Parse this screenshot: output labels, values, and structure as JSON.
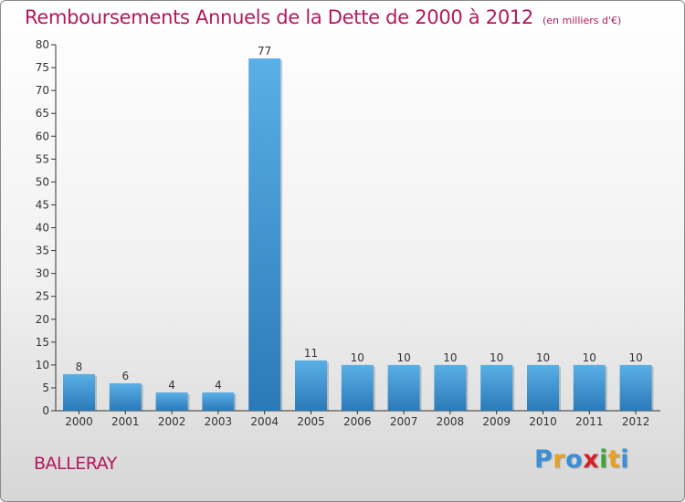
{
  "chart_data": {
    "type": "bar",
    "title": "Remboursements Annuels de la Dette de 2000 à 2012",
    "unit": "(en milliers d'€)",
    "categories": [
      "2000",
      "2001",
      "2002",
      "2003",
      "2004",
      "2005",
      "2006",
      "2007",
      "2008",
      "2009",
      "2010",
      "2011",
      "2012"
    ],
    "values": [
      8,
      6,
      4,
      4,
      77,
      11,
      10,
      10,
      10,
      10,
      10,
      10,
      10
    ],
    "yticks": [
      0,
      5,
      10,
      15,
      20,
      25,
      30,
      35,
      40,
      45,
      50,
      55,
      60,
      65,
      70,
      75,
      80
    ],
    "ylim": [
      0,
      80
    ],
    "xlabel": "",
    "ylabel": "",
    "grid": false,
    "legend": "none",
    "bar_color_light": "#5aafe6",
    "bar_color_dark": "#2a7ab8"
  },
  "city": "BALLERAY",
  "brand": {
    "letters": [
      "P",
      "r",
      "o",
      "x",
      "i",
      "t",
      "i"
    ],
    "colors": [
      "#3a8fd6",
      "#e8a020",
      "#3a8fd6",
      "#d62027",
      "#3aa63a",
      "#e8a020",
      "#3a8fd6"
    ]
  },
  "colors": {
    "title": "#b2195d",
    "axis": "#333333"
  }
}
